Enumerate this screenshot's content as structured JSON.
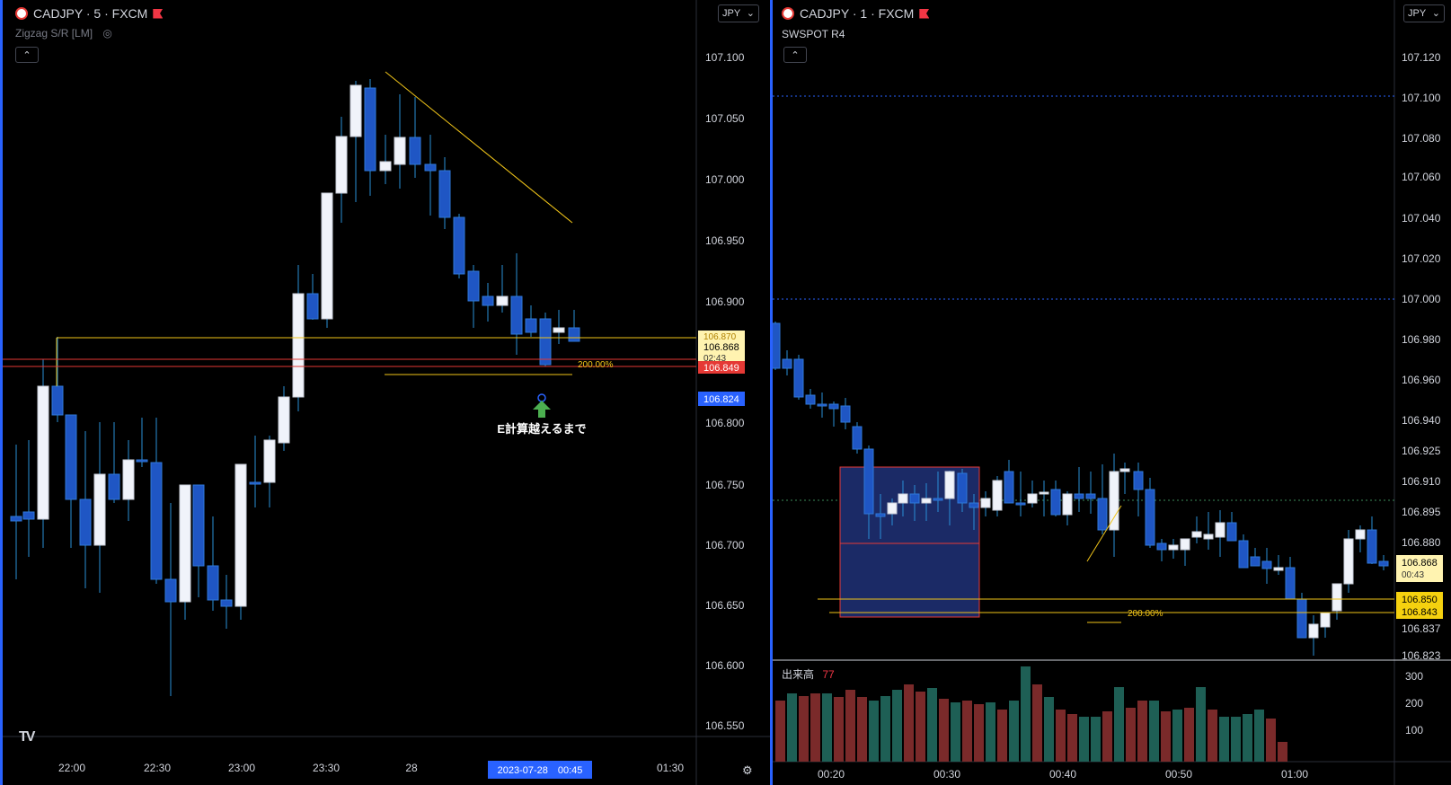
{
  "left": {
    "symbol_title": "CADJPY · 5 · FXCM",
    "indicator": "Zigzag S/R [LM]",
    "collapse_label": "⌃",
    "currency": "JPY",
    "price_labels": [
      "107.100",
      "107.050",
      "107.000",
      "106.950",
      "106.900",
      "106.800",
      "106.750",
      "106.700",
      "106.650",
      "106.600",
      "106.550"
    ],
    "price_tags": {
      "yellow_line": "106.870",
      "last_price": "106.868",
      "countdown": "02:43",
      "red_line": "106.849",
      "blue_line": "106.824"
    },
    "time_labels": [
      "22:00",
      "22:30",
      "23:00",
      "23:30",
      "28",
      "01:30"
    ],
    "time_cursor": "2023-07-28　00:45",
    "fib_label": "200.00%",
    "annotation": "E計算越えるまで",
    "colors": {
      "up": "#f0f3fa",
      "down": "#1f56c4",
      "wick": "#2a8fd6",
      "yellow": "#f0c419",
      "red": "#e53935",
      "blue": "#2962ff"
    }
  },
  "right": {
    "symbol_title": "CADJPY · 1 · FXCM",
    "indicator": "SWSPOT R4",
    "collapse_label": "⌃",
    "currency": "JPY",
    "price_labels": [
      "107.120",
      "107.100",
      "107.080",
      "107.060",
      "107.040",
      "107.020",
      "107.000",
      "106.980",
      "106.960",
      "106.940",
      "106.925",
      "106.910",
      "106.895",
      "106.880",
      "106.837",
      "106.823"
    ],
    "price_tags": {
      "last_price": "106.868",
      "countdown": "00:43",
      "line_a": "106.850",
      "line_b": "106.843"
    },
    "fib_label": "200.00%",
    "volume_title": "出来高",
    "volume_value": "77",
    "volume_labels": [
      "300",
      "200",
      "100"
    ],
    "time_labels": [
      "00:20",
      "00:30",
      "00:40",
      "00:50",
      "01:00"
    ],
    "colors": {
      "vol_up": "#1e5f55",
      "vol_down": "#7a2a2a",
      "box": "#1b2a66",
      "box_border": "#e53935",
      "dotted": "#2962ff"
    }
  }
}
